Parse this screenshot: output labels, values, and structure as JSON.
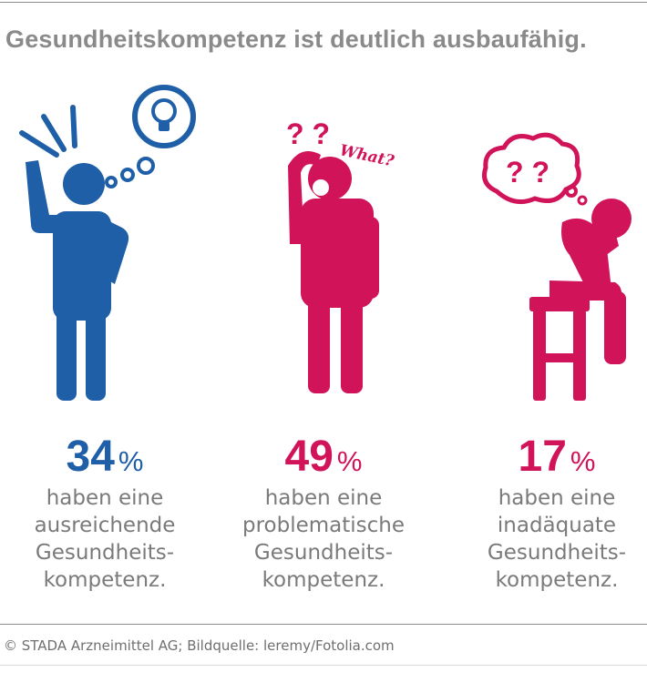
{
  "title": "Gesundheitskompetenz ist deutlich ausbaufähig.",
  "colors": {
    "blue": "#1f5fa8",
    "magenta": "#d1145a",
    "gray": "#7a7a7a"
  },
  "groups": [
    {
      "percent": "34",
      "unit": "%",
      "lines": [
        "haben eine",
        "ausreichende",
        "Gesundheits-",
        "kompetenz."
      ],
      "color": "#1f5fa8",
      "icon": "person-lightbulb-icon"
    },
    {
      "percent": "49",
      "unit": "%",
      "lines": [
        "haben eine",
        "problematische",
        "Gesundheits-",
        "kompetenz."
      ],
      "color": "#d1145a",
      "icon": "person-confused-icon"
    },
    {
      "percent": "17",
      "unit": "%",
      "lines": [
        "haben eine",
        "inadäquate",
        "Gesundheits-",
        "kompetenz."
      ],
      "color": "#d1145a",
      "icon": "person-on-stool-icon"
    }
  ],
  "illustration": {
    "qmarks_1": "? ?",
    "what": "What?",
    "qmarks_3": "? ?"
  },
  "credit": "© STADA Arzneimittel AG; Bildquelle: leremy/Fotolia.com"
}
